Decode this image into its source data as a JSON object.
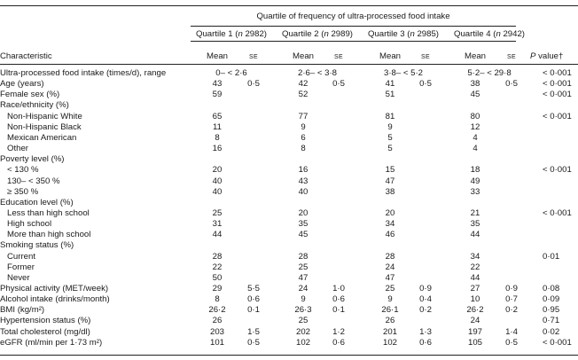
{
  "header": {
    "group_title": "Quartile of frequency of ultra-processed food intake",
    "characteristic_label": "Characteristic",
    "quartiles": [
      {
        "prefix": "Quartile 1 (",
        "n": "n",
        "count": " 2982)"
      },
      {
        "prefix": "Quartile 2 (",
        "n": "n",
        "count": " 2989)"
      },
      {
        "prefix": "Quartile 3 (",
        "n": "n",
        "count": " 2985)"
      },
      {
        "prefix": "Quartile 4 (",
        "n": "n",
        "count": " 2942)"
      }
    ],
    "mean_label": "Mean",
    "se_label": "SE",
    "p_label": "P",
    "p_suffix": " value†"
  },
  "rows": [
    {
      "label": "Ultra-processed food intake (times/d), range",
      "indent": false,
      "vals": [
        [
          "0– < 2·6",
          ""
        ],
        [
          "2·6– < 3·8",
          ""
        ],
        [
          "3·8– < 5·2",
          ""
        ],
        [
          "5·2– < 29·8",
          ""
        ]
      ],
      "p": "< 0·001",
      "range": true
    },
    {
      "label": "Age (years)",
      "indent": false,
      "vals": [
        [
          "43",
          "0·5"
        ],
        [
          "42",
          "0·5"
        ],
        [
          "41",
          "0·5"
        ],
        [
          "38",
          "0·5"
        ]
      ],
      "p": "< 0·001"
    },
    {
      "label": "Female sex (%)",
      "indent": false,
      "vals": [
        [
          "59",
          ""
        ],
        [
          "52",
          ""
        ],
        [
          "51",
          ""
        ],
        [
          "45",
          ""
        ]
      ],
      "p": "< 0·001"
    },
    {
      "label": "Race/ethnicity (%)",
      "indent": false,
      "vals": [
        [
          "",
          ""
        ],
        [
          "",
          ""
        ],
        [
          "",
          ""
        ],
        [
          "",
          ""
        ]
      ],
      "p": ""
    },
    {
      "label": "Non-Hispanic White",
      "indent": true,
      "vals": [
        [
          "65",
          ""
        ],
        [
          "77",
          ""
        ],
        [
          "81",
          ""
        ],
        [
          "80",
          ""
        ]
      ],
      "p": "< 0·001"
    },
    {
      "label": "Non-Hispanic Black",
      "indent": true,
      "vals": [
        [
          "11",
          ""
        ],
        [
          "9",
          ""
        ],
        [
          "9",
          ""
        ],
        [
          "12",
          ""
        ]
      ],
      "p": ""
    },
    {
      "label": "Mexican American",
      "indent": true,
      "vals": [
        [
          "8",
          ""
        ],
        [
          "6",
          ""
        ],
        [
          "5",
          ""
        ],
        [
          "4",
          ""
        ]
      ],
      "p": ""
    },
    {
      "label": "Other",
      "indent": true,
      "vals": [
        [
          "16",
          ""
        ],
        [
          "8",
          ""
        ],
        [
          "5",
          ""
        ],
        [
          "4",
          ""
        ]
      ],
      "p": ""
    },
    {
      "label": "Poverty level (%)",
      "indent": false,
      "vals": [
        [
          "",
          ""
        ],
        [
          "",
          ""
        ],
        [
          "",
          ""
        ],
        [
          "",
          ""
        ]
      ],
      "p": ""
    },
    {
      "label": "< 130 %",
      "indent": true,
      "vals": [
        [
          "20",
          ""
        ],
        [
          "16",
          ""
        ],
        [
          "15",
          ""
        ],
        [
          "18",
          ""
        ]
      ],
      "p": "< 0·001"
    },
    {
      "label": "130– < 350 %",
      "indent": true,
      "vals": [
        [
          "40",
          ""
        ],
        [
          "43",
          ""
        ],
        [
          "47",
          ""
        ],
        [
          "49",
          ""
        ]
      ],
      "p": ""
    },
    {
      "label": "≥ 350 %",
      "indent": true,
      "vals": [
        [
          "40",
          ""
        ],
        [
          "40",
          ""
        ],
        [
          "38",
          ""
        ],
        [
          "33",
          ""
        ]
      ],
      "p": ""
    },
    {
      "label": "Education level (%)",
      "indent": false,
      "vals": [
        [
          "",
          ""
        ],
        [
          "",
          ""
        ],
        [
          "",
          ""
        ],
        [
          "",
          ""
        ]
      ],
      "p": ""
    },
    {
      "label": "Less than high school",
      "indent": true,
      "vals": [
        [
          "25",
          ""
        ],
        [
          "20",
          ""
        ],
        [
          "20",
          ""
        ],
        [
          "21",
          ""
        ]
      ],
      "p": "< 0·001"
    },
    {
      "label": "High school",
      "indent": true,
      "vals": [
        [
          "31",
          ""
        ],
        [
          "35",
          ""
        ],
        [
          "34",
          ""
        ],
        [
          "35",
          ""
        ]
      ],
      "p": ""
    },
    {
      "label": "More than high school",
      "indent": true,
      "vals": [
        [
          "44",
          ""
        ],
        [
          "45",
          ""
        ],
        [
          "46",
          ""
        ],
        [
          "44",
          ""
        ]
      ],
      "p": ""
    },
    {
      "label": "Smoking status (%)",
      "indent": false,
      "vals": [
        [
          "",
          ""
        ],
        [
          "",
          ""
        ],
        [
          "",
          ""
        ],
        [
          "",
          ""
        ]
      ],
      "p": ""
    },
    {
      "label": "Current",
      "indent": true,
      "vals": [
        [
          "28",
          ""
        ],
        [
          "28",
          ""
        ],
        [
          "28",
          ""
        ],
        [
          "34",
          ""
        ]
      ],
      "p": "0·01"
    },
    {
      "label": "Former",
      "indent": true,
      "vals": [
        [
          "22",
          ""
        ],
        [
          "25",
          ""
        ],
        [
          "24",
          ""
        ],
        [
          "22",
          ""
        ]
      ],
      "p": ""
    },
    {
      "label": "Never",
      "indent": true,
      "vals": [
        [
          "50",
          ""
        ],
        [
          "47",
          ""
        ],
        [
          "47",
          ""
        ],
        [
          "44",
          ""
        ]
      ],
      "p": ""
    },
    {
      "label": "Physical activity (MET/week)",
      "indent": false,
      "vals": [
        [
          "29",
          "5·5"
        ],
        [
          "24",
          "1·0"
        ],
        [
          "25",
          "0·9"
        ],
        [
          "27",
          "0·9"
        ]
      ],
      "p": "0·08"
    },
    {
      "label": "Alcohol intake (drinks/month)",
      "indent": false,
      "vals": [
        [
          "8",
          "0·6"
        ],
        [
          "9",
          "0·6"
        ],
        [
          "9",
          "0·4"
        ],
        [
          "10",
          "0·7"
        ]
      ],
      "p": "0·09"
    },
    {
      "label": "BMI (kg/m²)",
      "indent": false,
      "vals": [
        [
          "26·2",
          "0·1"
        ],
        [
          "26·3",
          "0·1"
        ],
        [
          "26·1",
          "0·2"
        ],
        [
          "26·2",
          "0·2"
        ]
      ],
      "p": "0·95"
    },
    {
      "label": "Hypertension status (%)",
      "indent": false,
      "vals": [
        [
          "26",
          ""
        ],
        [
          "25",
          ""
        ],
        [
          "26",
          ""
        ],
        [
          "24",
          ""
        ]
      ],
      "p": "0·71"
    },
    {
      "label": "Total cholesterol (mg/dl)",
      "indent": false,
      "vals": [
        [
          "203",
          "1·5"
        ],
        [
          "202",
          "1·2"
        ],
        [
          "201",
          "1·3"
        ],
        [
          "197",
          "1·4"
        ]
      ],
      "p": "0·02"
    },
    {
      "label": "eGFR (ml/min per 1·73 m²)",
      "indent": false,
      "vals": [
        [
          "101",
          "0·5"
        ],
        [
          "102",
          "0·6"
        ],
        [
          "102",
          "0·6"
        ],
        [
          "105",
          "0·5"
        ]
      ],
      "p": "< 0·001"
    }
  ]
}
